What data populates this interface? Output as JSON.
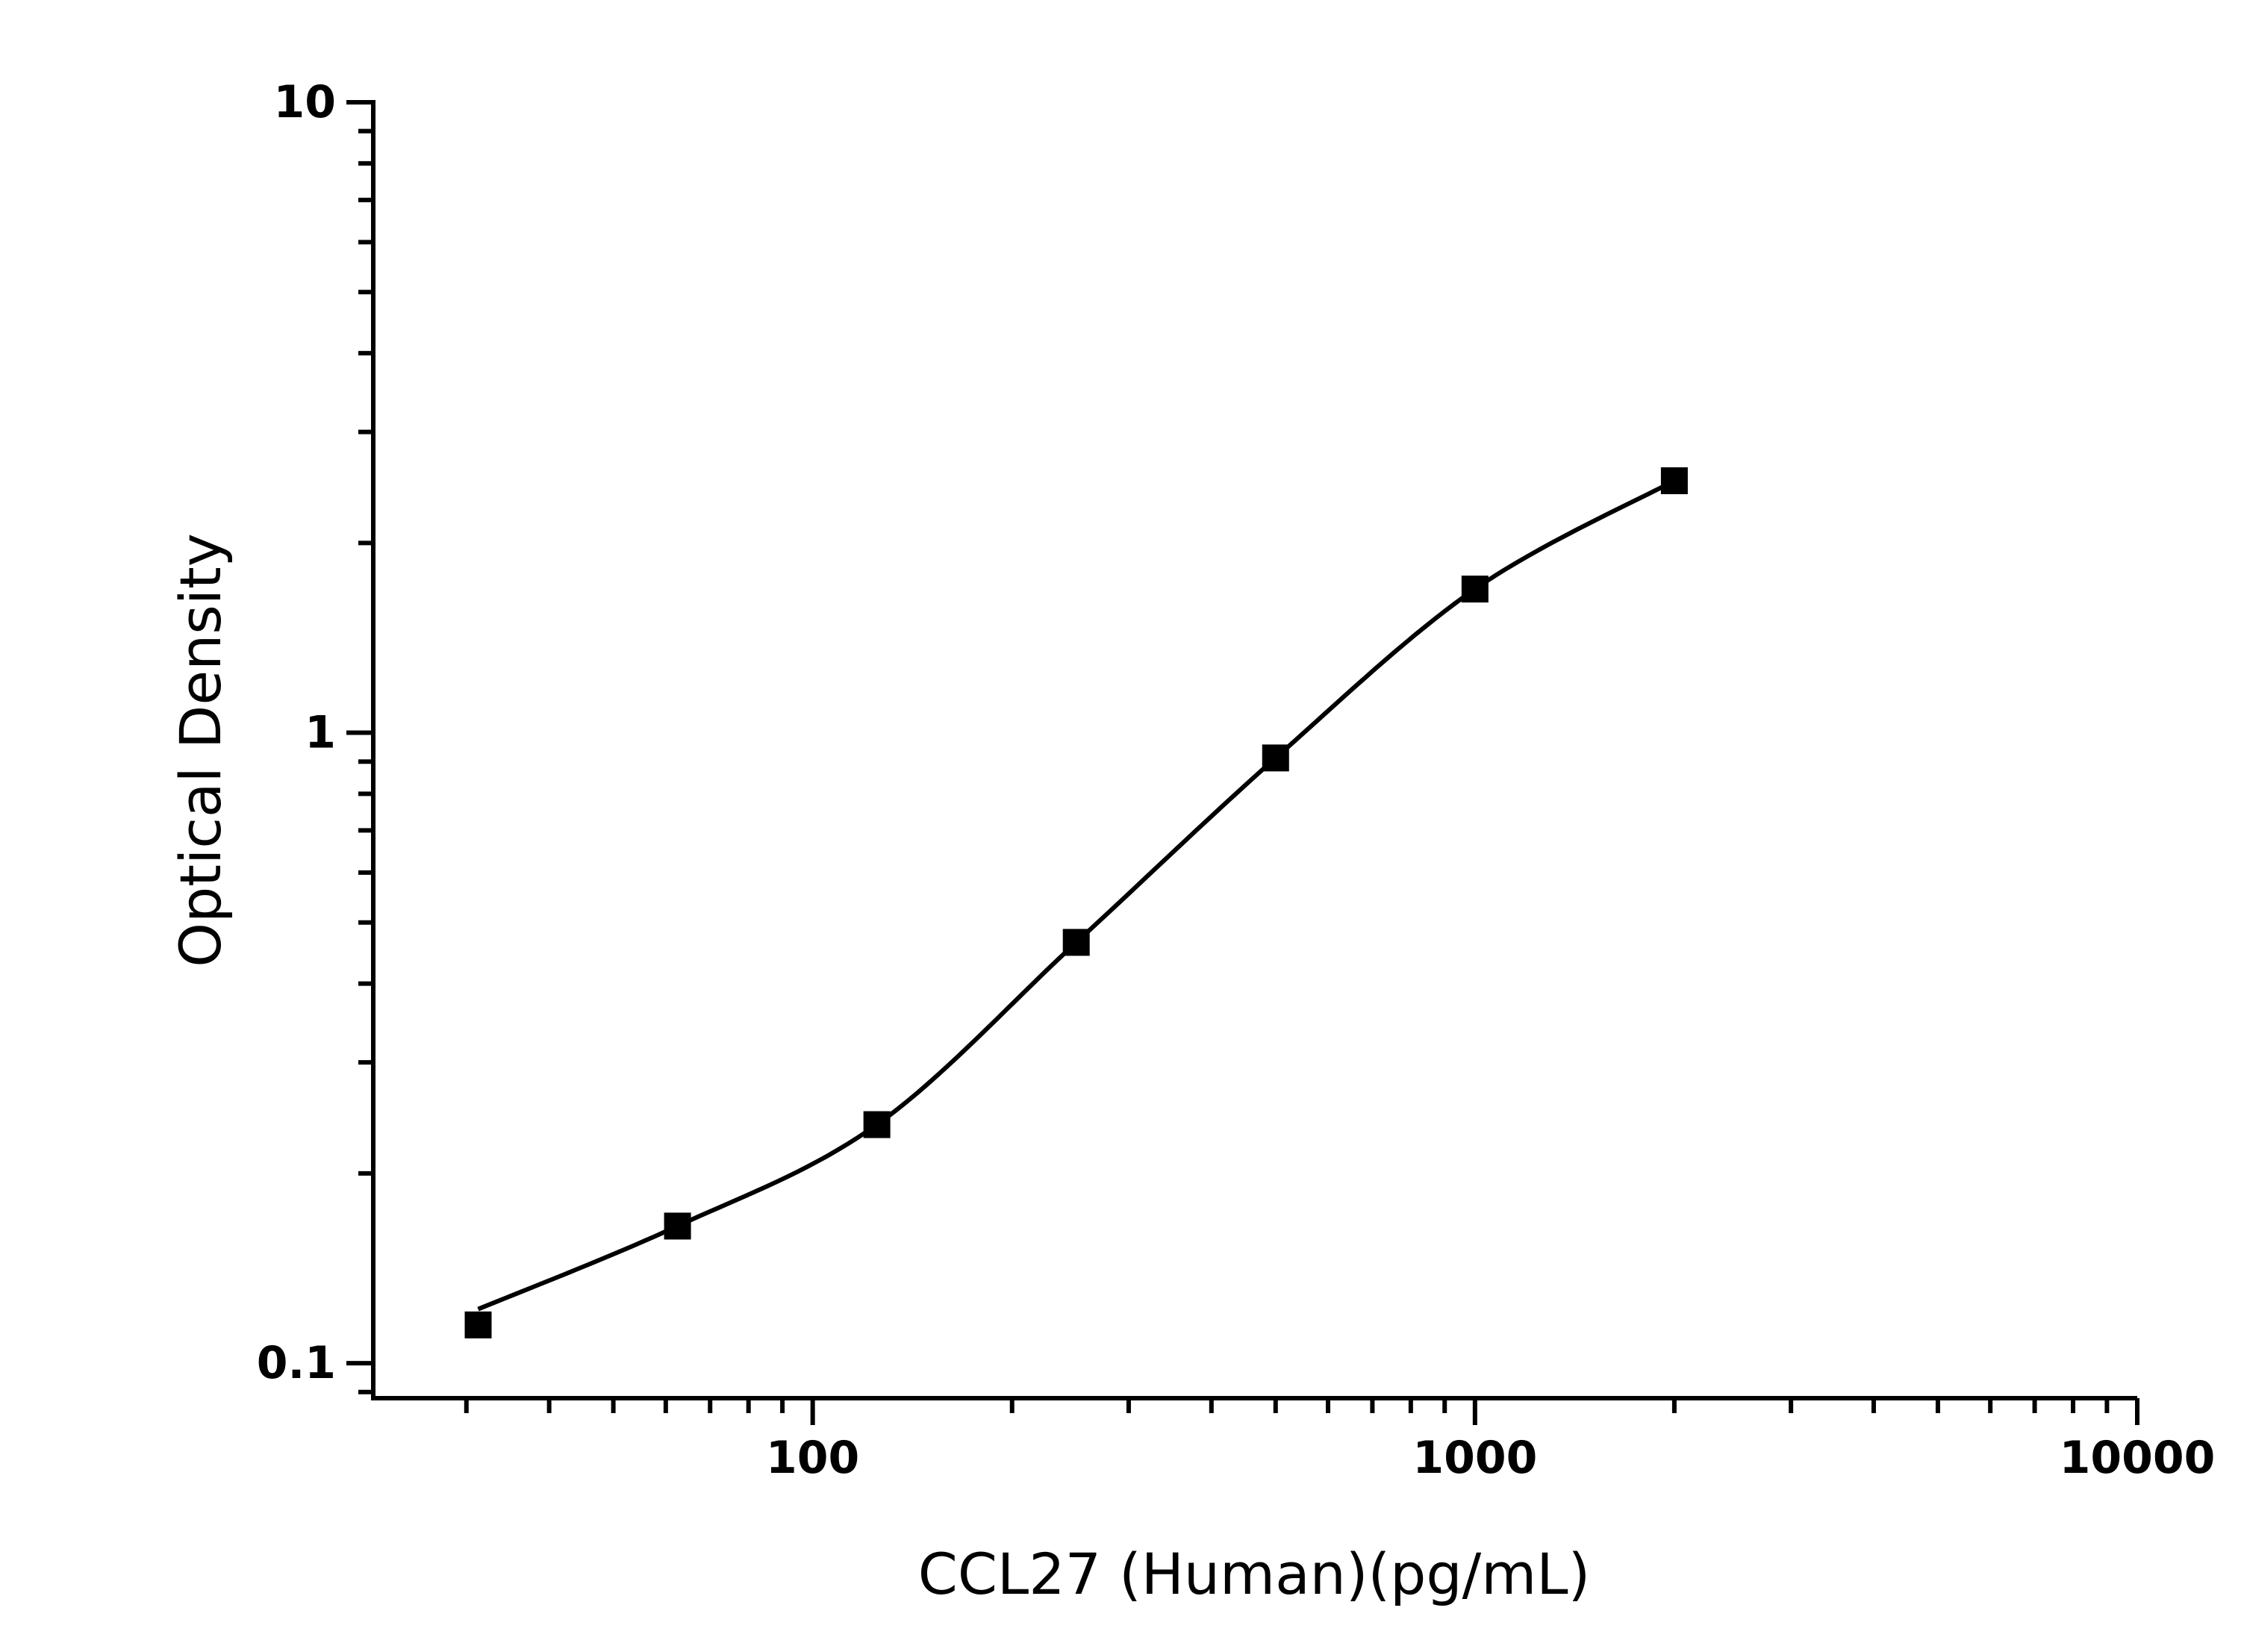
{
  "chart_data": {
    "type": "scatter",
    "xlabel": "CCL27 (Human)(pg/mL)",
    "ylabel": "Optical Density",
    "x_scale": "log",
    "y_scale": "log",
    "xlim": [
      21.7,
      10000
    ],
    "ylim": [
      0.088,
      10
    ],
    "x_ticks": [
      {
        "value": 100,
        "label": "100"
      },
      {
        "value": 1000,
        "label": "1000"
      },
      {
        "value": 10000,
        "label": "10000"
      }
    ],
    "y_ticks": [
      {
        "value": 0.1,
        "label": "0.1"
      },
      {
        "value": 1,
        "label": "1"
      },
      {
        "value": 10,
        "label": "10"
      }
    ],
    "grid": false,
    "marker": "square",
    "fit_curve": true,
    "color": "#000000",
    "points": [
      {
        "x": 31.25,
        "y": 0.115
      },
      {
        "x": 62.5,
        "y": 0.165
      },
      {
        "x": 125,
        "y": 0.239
      },
      {
        "x": 250,
        "y": 0.465
      },
      {
        "x": 500,
        "y": 0.912
      },
      {
        "x": 1000,
        "y": 1.69
      },
      {
        "x": 2000,
        "y": 2.51
      }
    ]
  }
}
